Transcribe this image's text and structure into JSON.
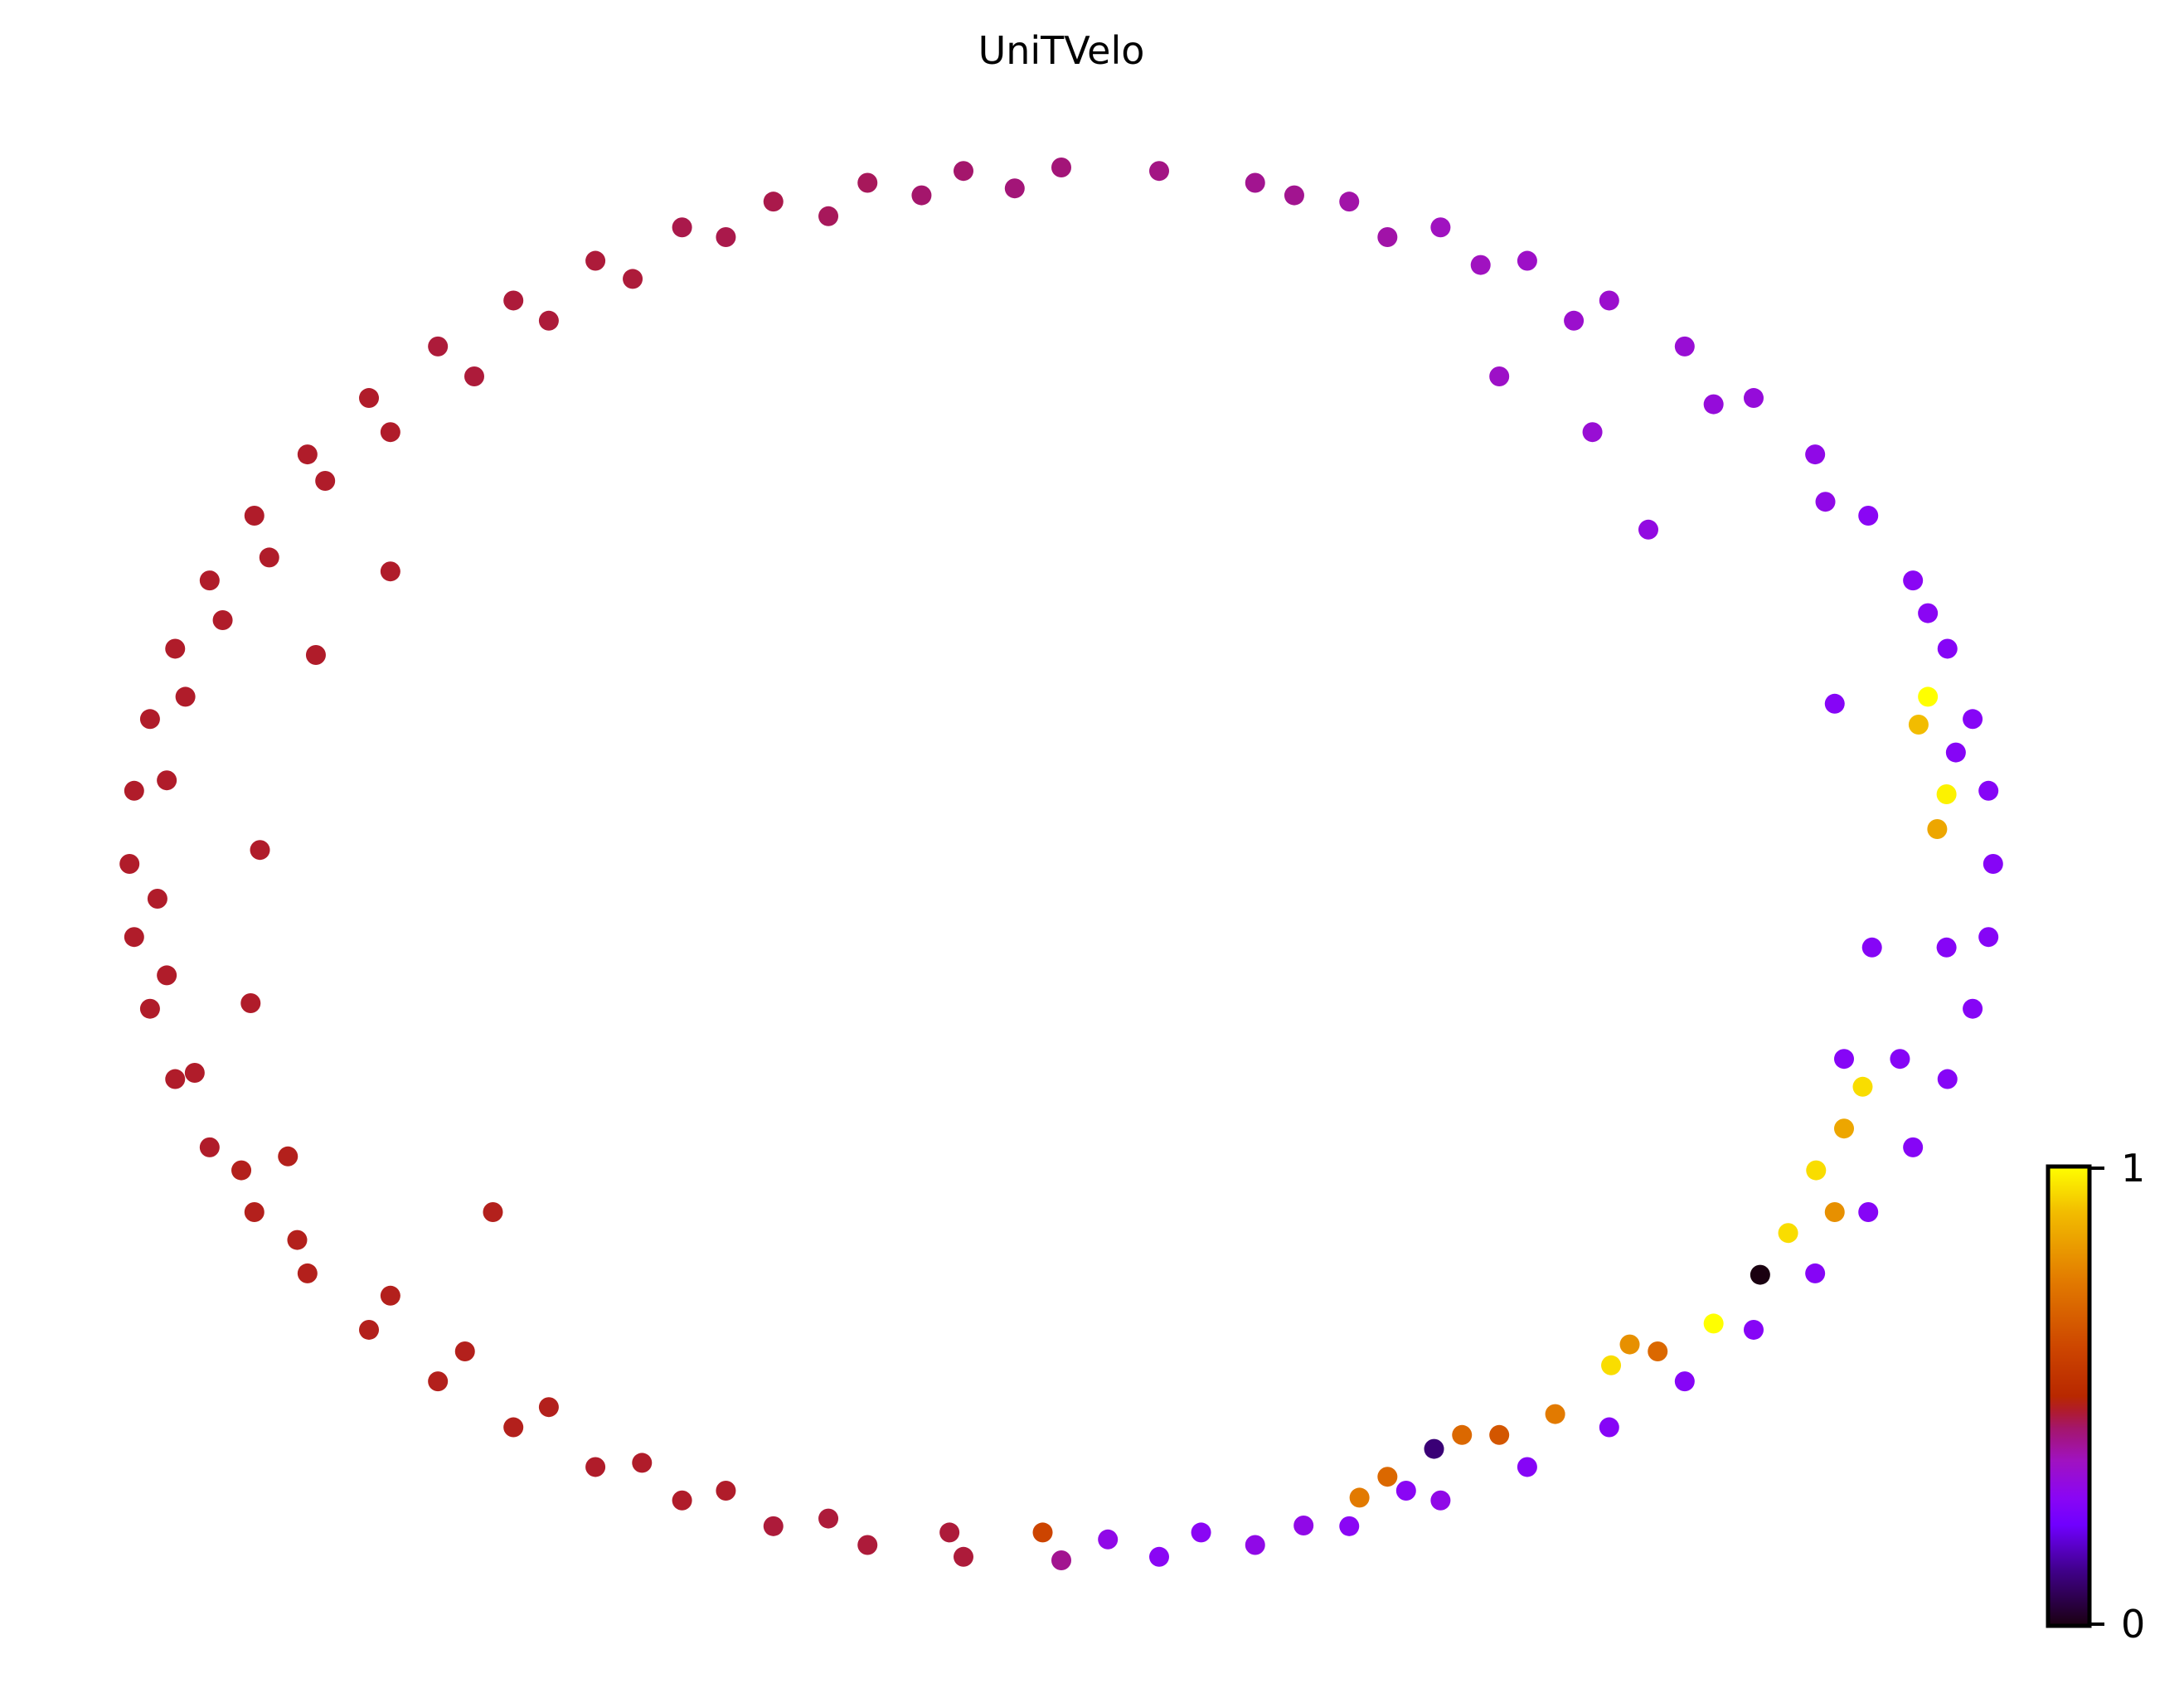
{
  "chart_data": {
    "type": "scatter",
    "title": "UniTVelo",
    "xlabel": "",
    "ylabel": "",
    "xlim": [
      -1.05,
      1.05
    ],
    "ylim": [
      -1.05,
      1.05
    ],
    "grid": false,
    "axes_visible": false,
    "colorbar": {
      "ticks": [
        "0",
        "1"
      ],
      "range": [
        0,
        1
      ],
      "placement": "bottom-right",
      "colormap_stops": [
        [
          0,
          "#1a0010"
        ],
        [
          0.12,
          "#40008a"
        ],
        [
          0.22,
          "#7000ff"
        ],
        [
          0.28,
          "#8a06f4"
        ],
        [
          0.36,
          "#a012c0"
        ],
        [
          0.43,
          "#a4166c"
        ],
        [
          0.47,
          "#b01c2a"
        ],
        [
          0.5,
          "#b82800"
        ],
        [
          0.6,
          "#cc4400"
        ],
        [
          0.75,
          "#e27a00"
        ],
        [
          0.9,
          "#f2bc00"
        ],
        [
          1,
          "#ffff00"
        ]
      ]
    },
    "points": [
      [
        1,
        0,
        0.27
      ],
      [
        0.995,
        0.105,
        0.27
      ],
      [
        0.978,
        0.208,
        0.27
      ],
      [
        0.951,
        0.309,
        0.27
      ],
      [
        0.914,
        0.407,
        0.28
      ],
      [
        0.866,
        0.5,
        0.28
      ],
      [
        0.809,
        0.588,
        0.3
      ],
      [
        0.743,
        0.669,
        0.32
      ],
      [
        0.669,
        0.743,
        0.33
      ],
      [
        0.588,
        0.809,
        0.34
      ],
      [
        0.5,
        0.866,
        0.35
      ],
      [
        0.407,
        0.914,
        0.36
      ],
      [
        0.309,
        0.951,
        0.38
      ],
      [
        0.208,
        0.978,
        0.4
      ],
      [
        0.105,
        0.995,
        0.41
      ],
      [
        0,
        1,
        0.42
      ],
      [
        -0.105,
        0.995,
        0.43
      ],
      [
        -0.208,
        0.978,
        0.44
      ],
      [
        -0.309,
        0.951,
        0.45
      ],
      [
        -0.407,
        0.914,
        0.45
      ],
      [
        -0.5,
        0.866,
        0.46
      ],
      [
        -0.588,
        0.809,
        0.46
      ],
      [
        -0.669,
        0.743,
        0.46
      ],
      [
        -0.743,
        0.669,
        0.47
      ],
      [
        -0.809,
        0.588,
        0.47
      ],
      [
        -0.866,
        0.5,
        0.47
      ],
      [
        -0.914,
        0.407,
        0.47
      ],
      [
        -0.951,
        0.309,
        0.47
      ],
      [
        -0.978,
        0.208,
        0.47
      ],
      [
        -0.995,
        0.105,
        0.47
      ],
      [
        -1,
        0,
        0.47
      ],
      [
        -0.995,
        -0.105,
        0.47
      ],
      [
        -0.978,
        -0.208,
        0.47
      ],
      [
        -0.951,
        -0.309,
        0.47
      ],
      [
        -0.914,
        -0.407,
        0.47
      ],
      [
        -0.866,
        -0.5,
        0.48
      ],
      [
        -0.809,
        -0.588,
        0.48
      ],
      [
        -0.743,
        -0.669,
        0.48
      ],
      [
        -0.669,
        -0.743,
        0.48
      ],
      [
        -0.588,
        -0.809,
        0.48
      ],
      [
        -0.5,
        -0.866,
        0.47
      ],
      [
        -0.407,
        -0.914,
        0.47
      ],
      [
        -0.309,
        -0.951,
        0.46
      ],
      [
        -0.208,
        -0.978,
        0.46
      ],
      [
        -0.105,
        -0.995,
        0.46
      ],
      [
        0,
        -1,
        0.4
      ],
      [
        0.105,
        -0.995,
        0.28
      ],
      [
        0.208,
        -0.978,
        0.3
      ],
      [
        0.309,
        -0.951,
        0.28
      ],
      [
        0.407,
        -0.914,
        0.3
      ],
      [
        0.5,
        -0.866,
        0.27
      ],
      [
        0.588,
        -0.809,
        0.27
      ],
      [
        0.669,
        -0.743,
        0.27
      ],
      [
        0.743,
        -0.669,
        0.27
      ],
      [
        0.809,
        -0.588,
        0.27
      ],
      [
        0.866,
        -0.5,
        0.27
      ],
      [
        0.914,
        -0.407,
        0.27
      ],
      [
        0.951,
        -0.309,
        0.27
      ],
      [
        0.978,
        -0.208,
        0.27
      ],
      [
        0.995,
        -0.105,
        0.27
      ],
      [
        0.96,
        0.16,
        0.27
      ],
      [
        0.93,
        0.36,
        0.28
      ],
      [
        0.82,
        0.52,
        0.3
      ],
      [
        0.7,
        0.66,
        0.32
      ],
      [
        0.55,
        0.78,
        0.34
      ],
      [
        0.45,
        0.86,
        0.36
      ],
      [
        0.35,
        0.9,
        0.38
      ],
      [
        0.25,
        0.96,
        0.4
      ],
      [
        -0.05,
        0.97,
        0.42
      ],
      [
        -0.15,
        0.96,
        0.43
      ],
      [
        -0.25,
        0.93,
        0.44
      ],
      [
        -0.36,
        0.9,
        0.45
      ],
      [
        -0.46,
        0.84,
        0.46
      ],
      [
        -0.55,
        0.78,
        0.46
      ],
      [
        -0.63,
        0.7,
        0.46
      ],
      [
        -0.72,
        0.62,
        0.47
      ],
      [
        -0.79,
        0.55,
        0.47
      ],
      [
        -0.85,
        0.44,
        0.47
      ],
      [
        -0.9,
        0.35,
        0.47
      ],
      [
        -0.94,
        0.24,
        0.47
      ],
      [
        -0.96,
        0.12,
        0.47
      ],
      [
        -0.97,
        -0.05,
        0.47
      ],
      [
        -0.96,
        -0.16,
        0.47
      ],
      [
        -0.93,
        -0.3,
        0.47
      ],
      [
        -0.88,
        -0.44,
        0.48
      ],
      [
        -0.82,
        -0.54,
        0.48
      ],
      [
        -0.72,
        -0.62,
        0.48
      ],
      [
        -0.64,
        -0.7,
        0.48
      ],
      [
        -0.55,
        -0.78,
        0.48
      ],
      [
        -0.45,
        -0.86,
        0.47
      ],
      [
        -0.36,
        -0.9,
        0.47
      ],
      [
        -0.25,
        -0.94,
        0.46
      ],
      [
        -0.12,
        -0.96,
        0.46
      ],
      [
        0.05,
        -0.97,
        0.3
      ],
      [
        0.15,
        -0.96,
        0.28
      ],
      [
        0.26,
        -0.95,
        0.3
      ],
      [
        0.37,
        -0.9,
        0.28
      ],
      [
        0.95,
        -0.12,
        0.27
      ],
      [
        0.9,
        -0.28,
        0.27
      ],
      [
        -0.72,
        0.42,
        0.47
      ],
      [
        -0.8,
        0.3,
        0.47
      ],
      [
        -0.86,
        0.02,
        0.47
      ],
      [
        -0.87,
        -0.2,
        0.47
      ],
      [
        -0.83,
        -0.42,
        0.48
      ],
      [
        -0.61,
        -0.5,
        0.48
      ],
      [
        0.57,
        0.62,
        0.33
      ],
      [
        0.47,
        0.7,
        0.35
      ],
      [
        0.63,
        0.48,
        0.31
      ],
      [
        0.83,
        0.23,
        0.27
      ],
      [
        0.87,
        -0.12,
        0.27
      ],
      [
        0.84,
        -0.28,
        0.27
      ],
      [
        0.93,
        0.24,
        1.0
      ],
      [
        0.95,
        0.1,
        0.98
      ],
      [
        0.92,
        0.2,
        0.9
      ],
      [
        0.94,
        0.05,
        0.85
      ],
      [
        0.81,
        -0.44,
        0.95
      ],
      [
        0.84,
        -0.38,
        0.85
      ],
      [
        0.86,
        -0.32,
        0.95
      ],
      [
        0.83,
        -0.5,
        0.8
      ],
      [
        0.78,
        -0.53,
        0.95
      ],
      [
        0.7,
        -0.66,
        1.0
      ],
      [
        0.59,
        -0.72,
        0.95
      ],
      [
        0.61,
        -0.69,
        0.8
      ],
      [
        0.64,
        -0.7,
        0.7
      ],
      [
        0.53,
        -0.79,
        0.75
      ],
      [
        0.47,
        -0.82,
        0.65
      ],
      [
        0.43,
        -0.82,
        0.7
      ],
      [
        0.35,
        -0.88,
        0.7
      ],
      [
        0.32,
        -0.91,
        0.75
      ],
      [
        -0.02,
        -0.96,
        0.6
      ],
      [
        0.4,
        -0.84,
        0.1
      ],
      [
        0.75,
        -0.59,
        0.0
      ]
    ]
  }
}
